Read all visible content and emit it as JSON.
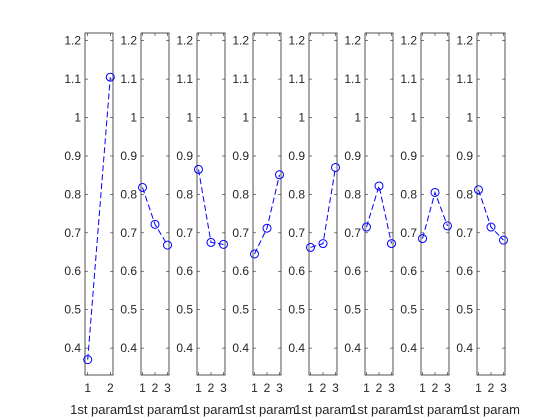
{
  "chart_data": [
    {
      "type": "line",
      "x": [
        1,
        2
      ],
      "xticks": [
        "1",
        "2"
      ],
      "values": [
        0.37,
        1.105
      ],
      "xlabel": "1st param",
      "ylim": [
        0.33,
        1.22
      ],
      "yticks": [
        "0.4",
        "0.5",
        "0.6",
        "0.7",
        "0.8",
        "0.9",
        "1",
        "1.1",
        "1.2"
      ],
      "line_style": "dashed",
      "marker": "circle"
    },
    {
      "type": "line",
      "x": [
        1,
        2,
        3
      ],
      "xticks": [
        "1",
        "2",
        "3"
      ],
      "values": [
        0.818,
        0.722,
        0.668
      ],
      "xlabel": "1st param",
      "ylim": [
        0.33,
        1.22
      ],
      "yticks": [
        "0.4",
        "0.5",
        "0.6",
        "0.7",
        "0.8",
        "0.9",
        "1",
        "1.1",
        "1.2"
      ],
      "line_style": "dashed",
      "marker": "circle"
    },
    {
      "type": "line",
      "x": [
        1,
        2,
        3
      ],
      "xticks": [
        "1",
        "2",
        "3"
      ],
      "values": [
        0.865,
        0.675,
        0.67
      ],
      "xlabel": "1st param",
      "ylim": [
        0.33,
        1.22
      ],
      "yticks": [
        "0.4",
        "0.5",
        "0.6",
        "0.7",
        "0.8",
        "0.9",
        "1",
        "1.1",
        "1.2"
      ],
      "line_style": "dashed",
      "marker": "circle"
    },
    {
      "type": "line",
      "x": [
        1,
        2,
        3
      ],
      "xticks": [
        "1",
        "2",
        "3"
      ],
      "values": [
        0.645,
        0.712,
        0.851
      ],
      "xlabel": "1st param",
      "ylim": [
        0.33,
        1.22
      ],
      "yticks": [
        "0.4",
        "0.5",
        "0.6",
        "0.7",
        "0.8",
        "0.9",
        "1",
        "1.1",
        "1.2"
      ],
      "line_style": "dashed",
      "marker": "circle"
    },
    {
      "type": "line",
      "x": [
        1,
        2,
        3
      ],
      "xticks": [
        "1",
        "2",
        "3"
      ],
      "values": [
        0.662,
        0.672,
        0.87
      ],
      "xlabel": "1st param",
      "ylim": [
        0.33,
        1.22
      ],
      "yticks": [
        "0.4",
        "0.5",
        "0.6",
        "0.7",
        "0.8",
        "0.9",
        "1",
        "1.1",
        "1.2"
      ],
      "line_style": "dashed",
      "marker": "circle"
    },
    {
      "type": "line",
      "x": [
        1,
        2,
        3
      ],
      "xticks": [
        "1",
        "2",
        "3"
      ],
      "values": [
        0.715,
        0.822,
        0.672
      ],
      "xlabel": "1st param",
      "ylim": [
        0.33,
        1.22
      ],
      "yticks": [
        "0.4",
        "0.5",
        "0.6",
        "0.7",
        "0.8",
        "0.9",
        "1",
        "1.1",
        "1.2"
      ],
      "line_style": "dashed",
      "marker": "circle"
    },
    {
      "type": "line",
      "x": [
        1,
        2,
        3
      ],
      "xticks": [
        "1",
        "2",
        "3"
      ],
      "values": [
        0.685,
        0.805,
        0.718
      ],
      "xlabel": "1st param",
      "ylim": [
        0.33,
        1.22
      ],
      "yticks": [
        "0.4",
        "0.5",
        "0.6",
        "0.7",
        "0.8",
        "0.9",
        "1",
        "1.1",
        "1.2"
      ],
      "line_style": "dashed",
      "marker": "circle"
    },
    {
      "type": "line",
      "x": [
        1,
        2,
        3
      ],
      "xticks": [
        "1",
        "2",
        "3"
      ],
      "values": [
        0.812,
        0.715,
        0.681
      ],
      "xlabel": "1st param",
      "ylim": [
        0.33,
        1.22
      ],
      "yticks": [
        "0.4",
        "0.5",
        "0.6",
        "0.7",
        "0.8",
        "0.9",
        "1",
        "1.1",
        "1.2"
      ],
      "line_style": "dashed",
      "marker": "circle"
    }
  ],
  "colors": {
    "series": "#0000ff",
    "axes": "#262626",
    "background": "#ffffff"
  }
}
